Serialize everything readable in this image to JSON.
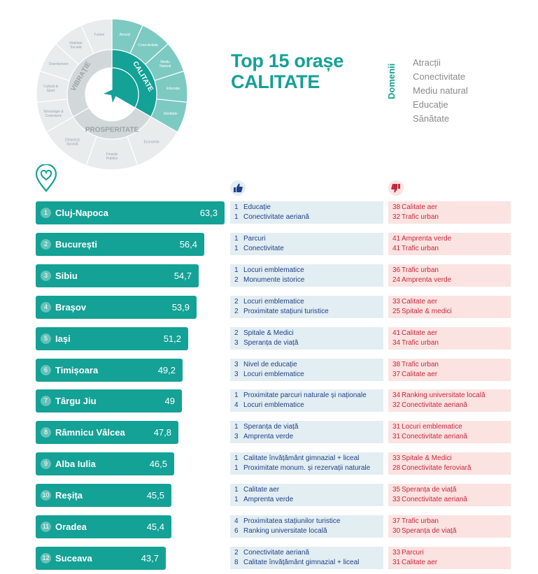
{
  "wheel": {
    "inner_labels": [
      "CALITATE",
      "PROSPERITATE",
      "VIBRAȚIE"
    ],
    "segments": [
      "Atracții",
      "Conectivitate",
      "Mediu Natural",
      "Educație",
      "Sănătate",
      "Economie",
      "Finanțe Publice",
      "Dinamică Socială",
      "Tehnologie & Conexiune",
      "Cultură & Sport",
      "Divertisment",
      "Vitalitate Socială",
      "Turism"
    ],
    "colors": {
      "teal": "#14a196",
      "teal_light": "#7dcac2",
      "grey_light": "#e8eced",
      "grey_mid": "#d2d8da"
    }
  },
  "title": {
    "line1": "Top 15 orașe",
    "line2": "CALITATE"
  },
  "domains": {
    "label": "Domenii",
    "items": [
      "Atracții",
      "Conectivitate",
      "Mediu natural",
      "Educație",
      "Sănătate"
    ]
  },
  "icons": {
    "heart": "heart-pin-icon",
    "good": "thumbs-up-icon",
    "bad": "thumbs-down-icon"
  },
  "chart_data": {
    "type": "bar",
    "title": "Top 15 orașe CALITATE",
    "ranks": [
      "1",
      "2",
      "3",
      "4",
      "5",
      "6",
      "7",
      "8",
      "9",
      "10",
      "11",
      "12"
    ],
    "categories": [
      "Cluj-Napoca",
      "București",
      "Sibiu",
      "Brașov",
      "Iași",
      "Timișoara",
      "Târgu Jiu",
      "Râmnicu Vâlcea",
      "Alba Iulia",
      "Reșița",
      "Oradea",
      "Suceava"
    ],
    "values": [
      63.3,
      56.4,
      54.7,
      53.9,
      51.2,
      49.2,
      49,
      47.8,
      46.5,
      45.5,
      45.4,
      43.7
    ],
    "value_labels": [
      "63,3",
      "56,4",
      "54,7",
      "53,9",
      "51,2",
      "49,2",
      "49",
      "47,8",
      "46,5",
      "45,5",
      "45,4",
      "43,7"
    ],
    "strengths": [
      [
        [
          "1",
          "Educație"
        ],
        [
          "1",
          "Conectivitate aeriană"
        ]
      ],
      [
        [
          "1",
          "Parcuri"
        ],
        [
          "1",
          "Conectivitate"
        ]
      ],
      [
        [
          "1",
          "Locuri emblematice"
        ],
        [
          "2",
          "Monumente istorice"
        ]
      ],
      [
        [
          "2",
          "Locuri emblematice"
        ],
        [
          "2",
          "Proximitate stațiuni turistice"
        ]
      ],
      [
        [
          "2",
          "Spitale & Medici"
        ],
        [
          "3",
          "Speranța de viață"
        ]
      ],
      [
        [
          "3",
          "Nivel de educație"
        ],
        [
          "3",
          "Locuri emblematice"
        ]
      ],
      [
        [
          "1",
          "Proximitate parcuri naturale și naționale"
        ],
        [
          "4",
          "Locuri emblematice"
        ]
      ],
      [
        [
          "1",
          "Speranța de viață"
        ],
        [
          "3",
          "Amprenta verde"
        ]
      ],
      [
        [
          "1",
          "Calitate învățământ gimnazial + liceal"
        ],
        [
          "1",
          "Proximitate monum. și rezervații naturale"
        ]
      ],
      [
        [
          "1",
          "Calitate aer"
        ],
        [
          "1",
          "Amprenta verde"
        ]
      ],
      [
        [
          "4",
          "Proximitatea stațiunilor turistice"
        ],
        [
          "6",
          "Ranking universitate locală"
        ]
      ],
      [
        [
          "2",
          "Conectivitate aeriană"
        ],
        [
          "8",
          "Calitate învățământ gimnazial + liceal"
        ]
      ]
    ],
    "weaknesses": [
      [
        [
          "38",
          "Calitate aer"
        ],
        [
          "32",
          "Trafic urban"
        ]
      ],
      [
        [
          "41",
          "Amprenta verde"
        ],
        [
          "41",
          "Trafic urban"
        ]
      ],
      [
        [
          "36",
          "Trafic urban"
        ],
        [
          "24",
          "Amprenta verde"
        ]
      ],
      [
        [
          "33",
          "Calitate aer"
        ],
        [
          "25",
          "Spitale & medici"
        ]
      ],
      [
        [
          "41",
          "Calitate aer"
        ],
        [
          "34",
          "Trafic urban"
        ]
      ],
      [
        [
          "38",
          "Trafic urban"
        ],
        [
          "37",
          "Calitate aer"
        ]
      ],
      [
        [
          "34",
          "Ranking universitate locală"
        ],
        [
          "32",
          "Conectivitate aeriană"
        ]
      ],
      [
        [
          "31",
          "Locuri emblematice"
        ],
        [
          "31",
          "Conectivitate aeriană"
        ]
      ],
      [
        [
          "33",
          "Spitale & Medici"
        ],
        [
          "28",
          "Conectivitate feroviară"
        ]
      ],
      [
        [
          "35",
          "Speranța de viață"
        ],
        [
          "33",
          "Conectivitate aeriană"
        ]
      ],
      [
        [
          "37",
          "Trafic urban"
        ],
        [
          "30",
          "Speranța de viață"
        ]
      ],
      [
        [
          "33",
          "Parcuri"
        ],
        [
          "31",
          "Calitate aer"
        ]
      ]
    ]
  }
}
